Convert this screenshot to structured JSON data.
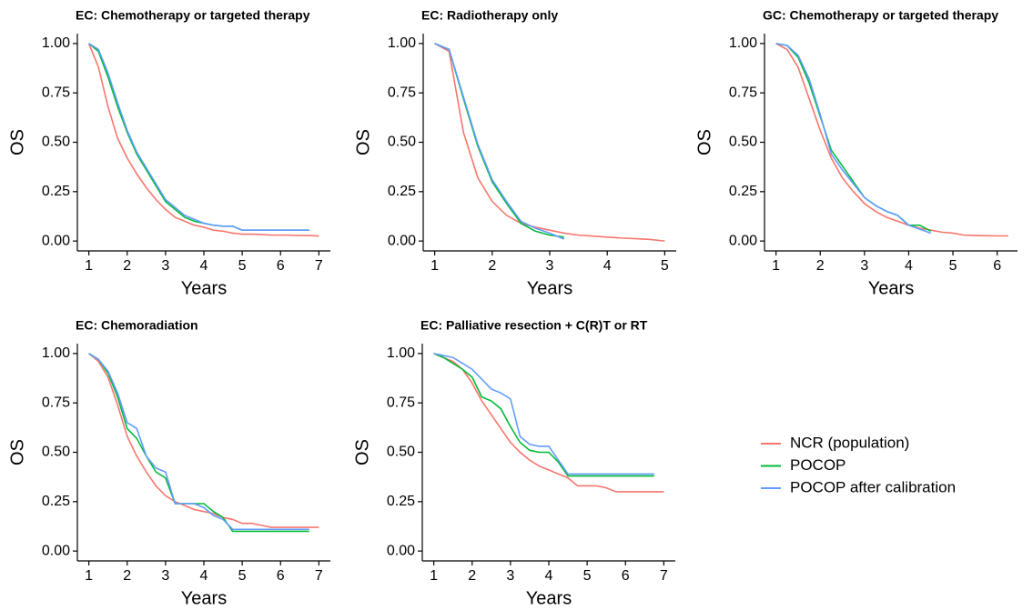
{
  "chart_data": [
    {
      "type": "line",
      "title": "EC: Chemotherapy or targeted therapy",
      "xlabel": "Years",
      "ylabel": "OS",
      "x": [
        1,
        1.25,
        1.5,
        1.75,
        2,
        2.25,
        2.5,
        2.75,
        3,
        3.25,
        3.5,
        3.75,
        4,
        4.25,
        4.5,
        4.75,
        5,
        5.25,
        5.5,
        5.75,
        6,
        6.25,
        6.5,
        6.75,
        7
      ],
      "xlim": [
        0.7,
        7.3
      ],
      "xticks": [
        1,
        2,
        3,
        4,
        5,
        6,
        7
      ],
      "ylim": [
        -0.05,
        1.05
      ],
      "yticks": [
        {
          "value": 0,
          "label": "0.00"
        },
        0.25,
        {
          "value": 0.5,
          "label": "0.50"
        },
        0.75,
        {
          "value": 1,
          "label": "1.00"
        }
      ],
      "series": [
        {
          "name": "NCR (population)",
          "color": "#F8766D",
          "values": [
            1,
            0.88,
            0.68,
            0.52,
            0.42,
            0.34,
            0.27,
            0.21,
            0.16,
            0.12,
            0.1,
            0.08,
            0.07,
            0.055,
            0.05,
            0.04,
            0.035,
            0.035,
            0.033,
            0.03,
            0.03,
            0.03,
            0.028,
            0.028,
            0.025
          ]
        },
        {
          "name": "POCOP",
          "color": "#00BA38",
          "values": [
            1,
            0.96,
            0.83,
            0.68,
            0.55,
            0.44,
            0.36,
            0.28,
            0.2,
            0.16,
            0.12,
            0.1,
            0.09,
            0.08,
            0.075,
            0.075,
            0.055,
            0.055,
            0.055,
            0.055,
            0.055,
            0.055,
            0.055,
            0.055,
            null
          ]
        },
        {
          "name": "POCOP after calibration",
          "color": "#619CFF",
          "values": [
            1,
            0.97,
            0.85,
            0.7,
            0.56,
            0.45,
            0.37,
            0.29,
            0.21,
            0.17,
            0.13,
            0.11,
            0.09,
            0.08,
            0.075,
            0.075,
            0.055,
            0.055,
            0.055,
            0.055,
            0.055,
            0.055,
            0.055,
            0.055,
            null
          ]
        }
      ]
    },
    {
      "type": "line",
      "title": "EC: Radiotherapy only",
      "xlabel": "Years",
      "ylabel": "OS",
      "x": [
        1,
        1.25,
        1.5,
        1.75,
        2,
        2.25,
        2.5,
        2.75,
        3,
        3.25,
        3.5,
        3.75,
        4,
        4.25,
        4.5,
        4.75,
        5
      ],
      "xlim": [
        0.8,
        5.2
      ],
      "xticks": [
        1,
        2,
        3,
        4,
        5
      ],
      "ylim": [
        -0.05,
        1.05
      ],
      "yticks": [
        {
          "value": 0,
          "label": "0.00"
        },
        0.25,
        {
          "value": 0.5,
          "label": "0.50"
        },
        0.75,
        {
          "value": 1,
          "label": "1.00"
        }
      ],
      "series": [
        {
          "color": "#F8766D",
          "values": [
            1,
            0.96,
            0.55,
            0.32,
            0.2,
            0.13,
            0.09,
            0.07,
            0.055,
            0.04,
            0.03,
            0.025,
            0.02,
            0.015,
            0.012,
            0.008,
            0
          ]
        },
        {
          "color": "#00BA38",
          "values": [
            1,
            0.97,
            0.72,
            0.48,
            0.3,
            0.19,
            0.09,
            0.05,
            0.03,
            0.02,
            null,
            null,
            null,
            null,
            null,
            null,
            null
          ]
        },
        {
          "color": "#619CFF",
          "values": [
            1,
            0.97,
            0.73,
            0.49,
            0.31,
            0.2,
            0.1,
            0.065,
            0.04,
            0.01,
            null,
            null,
            null,
            null,
            null,
            null,
            null
          ]
        }
      ]
    },
    {
      "type": "line",
      "title": "GC: Chemotherapy or targeted therapy",
      "xlabel": "Years",
      "ylabel": "OS",
      "x": [
        1,
        1.25,
        1.5,
        1.75,
        2,
        2.25,
        2.5,
        2.75,
        3,
        3.25,
        3.5,
        3.75,
        4,
        4.25,
        4.5,
        4.75,
        5,
        5.25,
        5.5,
        5.75,
        6,
        6.25
      ],
      "xlim": [
        0.74,
        6.46
      ],
      "xticks": [
        1,
        2,
        3,
        4,
        5,
        6
      ],
      "ylim": [
        -0.05,
        1.05
      ],
      "yticks": [
        {
          "value": 0,
          "label": "0.00"
        },
        0.25,
        {
          "value": 0.5,
          "label": "0.50"
        },
        0.75,
        {
          "value": 1,
          "label": "1.00"
        }
      ],
      "series": [
        {
          "color": "#F8766D",
          "values": [
            1,
            0.97,
            0.88,
            0.72,
            0.56,
            0.42,
            0.32,
            0.25,
            0.19,
            0.15,
            0.12,
            0.1,
            0.08,
            0.065,
            0.055,
            0.045,
            0.04,
            0.03,
            0.028,
            0.027,
            0.026,
            0.026
          ]
        },
        {
          "color": "#00BA38",
          "values": [
            1,
            0.99,
            0.93,
            0.8,
            0.63,
            0.46,
            0.38,
            0.3,
            0.22,
            0.18,
            0.15,
            0.13,
            0.08,
            0.08,
            0.05,
            null,
            null,
            null,
            null,
            null,
            null,
            null
          ]
        },
        {
          "color": "#619CFF",
          "values": [
            1,
            0.99,
            0.94,
            0.82,
            0.64,
            0.44,
            0.36,
            0.29,
            0.22,
            0.18,
            0.15,
            0.13,
            0.08,
            0.06,
            0.04,
            null,
            null,
            null,
            null,
            null,
            null,
            null
          ]
        }
      ]
    },
    {
      "type": "line",
      "title": "EC: Chemoradiation",
      "xlabel": "Years",
      "ylabel": "OS",
      "x": [
        1,
        1.25,
        1.5,
        1.75,
        2,
        2.25,
        2.5,
        2.75,
        3,
        3.25,
        3.5,
        3.75,
        4,
        4.25,
        4.5,
        4.75,
        5,
        5.25,
        5.5,
        5.75,
        6,
        6.25,
        6.5,
        6.75,
        7
      ],
      "xlim": [
        0.7,
        7.3
      ],
      "xticks": [
        1,
        2,
        3,
        4,
        5,
        6,
        7
      ],
      "ylim": [
        -0.05,
        1.05
      ],
      "yticks": [
        {
          "value": 0,
          "label": "0.00"
        },
        0.25,
        {
          "value": 0.5,
          "label": "0.50"
        },
        0.75,
        {
          "value": 1,
          "label": "1.00"
        }
      ],
      "series": [
        {
          "color": "#F8766D",
          "values": [
            1,
            0.96,
            0.88,
            0.74,
            0.58,
            0.48,
            0.4,
            0.33,
            0.28,
            0.25,
            0.23,
            0.21,
            0.2,
            0.19,
            0.17,
            0.16,
            0.14,
            0.14,
            0.13,
            0.12,
            0.12,
            0.12,
            0.12,
            0.12,
            0.12
          ]
        },
        {
          "color": "#00BA38",
          "values": [
            1,
            0.97,
            0.9,
            0.78,
            0.62,
            0.57,
            0.48,
            0.4,
            0.37,
            0.24,
            0.24,
            0.24,
            0.24,
            0.2,
            0.17,
            0.1,
            0.1,
            0.1,
            0.1,
            0.1,
            0.1,
            0.1,
            0.1,
            0.1,
            null
          ]
        },
        {
          "color": "#619CFF",
          "values": [
            1,
            0.97,
            0.91,
            0.8,
            0.65,
            0.62,
            0.48,
            0.42,
            0.4,
            0.24,
            0.24,
            0.24,
            0.22,
            0.18,
            0.16,
            0.11,
            0.11,
            0.11,
            0.11,
            0.11,
            0.11,
            0.11,
            0.11,
            0.11,
            null
          ]
        }
      ]
    },
    {
      "type": "line",
      "title": "EC: Palliative resection + C(R)T or RT",
      "xlabel": "Years",
      "ylabel": "OS",
      "x": [
        1,
        1.25,
        1.5,
        1.75,
        2,
        2.25,
        2.5,
        2.75,
        3,
        3.25,
        3.5,
        3.75,
        4,
        4.25,
        4.5,
        4.75,
        5,
        5.25,
        5.5,
        5.75,
        6,
        6.25,
        6.5,
        6.75,
        7
      ],
      "xlim": [
        0.7,
        7.3
      ],
      "xticks": [
        1,
        2,
        3,
        4,
        5,
        6,
        7
      ],
      "ylim": [
        -0.05,
        1.05
      ],
      "yticks": [
        {
          "value": 0,
          "label": "0.00"
        },
        0.25,
        {
          "value": 0.5,
          "label": "0.50"
        },
        0.75,
        {
          "value": 1,
          "label": "1.00"
        }
      ],
      "series": [
        {
          "color": "#F8766D",
          "values": [
            1,
            0.98,
            0.96,
            0.92,
            0.85,
            0.76,
            0.69,
            0.62,
            0.55,
            0.5,
            0.46,
            0.43,
            0.41,
            0.39,
            0.37,
            0.33,
            0.33,
            0.33,
            0.32,
            0.3,
            0.3,
            0.3,
            0.3,
            0.3,
            0.3
          ]
        },
        {
          "color": "#00BA38",
          "values": [
            1,
            0.98,
            0.95,
            0.92,
            0.88,
            0.78,
            0.76,
            0.72,
            0.63,
            0.55,
            0.51,
            0.5,
            0.5,
            0.45,
            0.38,
            0.38,
            0.38,
            0.38,
            0.38,
            0.38,
            0.38,
            0.38,
            0.38,
            0.38,
            null
          ]
        },
        {
          "color": "#619CFF",
          "values": [
            1,
            0.99,
            0.98,
            0.95,
            0.92,
            0.87,
            0.82,
            0.8,
            0.77,
            0.58,
            0.54,
            0.53,
            0.53,
            0.46,
            0.39,
            0.39,
            0.39,
            0.39,
            0.39,
            0.39,
            0.39,
            0.39,
            0.39,
            0.39,
            null
          ]
        }
      ]
    }
  ]
}
